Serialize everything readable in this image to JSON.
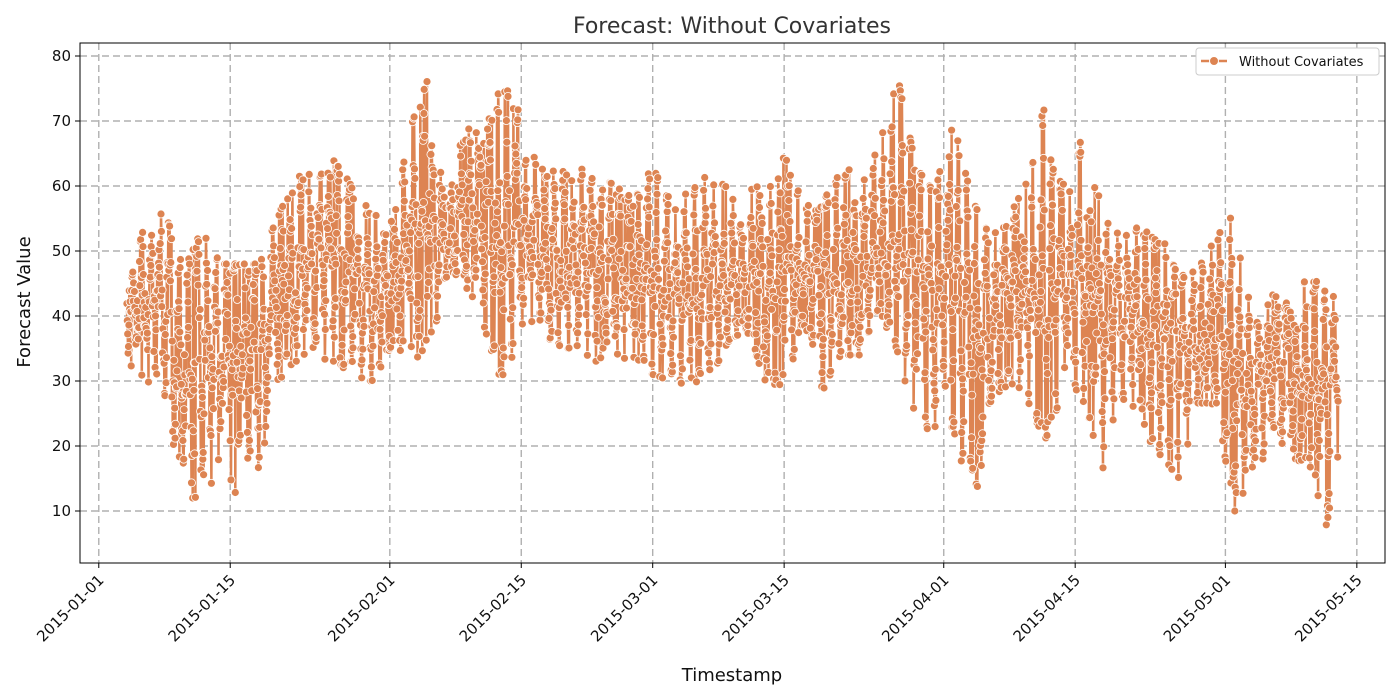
{
  "chart_data": {
    "type": "line",
    "title": "Forecast: Without Covariates",
    "xlabel": "Timestamp",
    "ylabel": "Forecast Value",
    "x_range": [
      "2014-12-30",
      "2015-05-18"
    ],
    "x_data_range": [
      "2015-01-04",
      "2015-05-13"
    ],
    "ylim": [
      2,
      82
    ],
    "y_ticks": [
      10,
      20,
      30,
      40,
      50,
      60,
      70,
      80
    ],
    "x_ticks": [
      "2015-01-01",
      "2015-01-15",
      "2015-02-01",
      "2015-02-15",
      "2015-03-01",
      "2015-03-15",
      "2015-04-01",
      "2015-04-15",
      "2015-05-01",
      "2015-05-15"
    ],
    "grid": true,
    "legend_position": "top-right",
    "series": [
      {
        "name": "Without Covariates",
        "color": "#dd8452",
        "marker": "circle",
        "daily_envelope": {
          "dates": [
            "2015-01-04",
            "2015-01-06",
            "2015-01-08",
            "2015-01-10",
            "2015-01-12",
            "2015-01-14",
            "2015-01-16",
            "2015-01-18",
            "2015-01-20",
            "2015-01-22",
            "2015-01-24",
            "2015-01-26",
            "2015-01-28",
            "2015-01-30",
            "2015-02-01",
            "2015-02-03",
            "2015-02-05",
            "2015-02-07",
            "2015-02-09",
            "2015-02-11",
            "2015-02-13",
            "2015-02-15",
            "2015-02-17",
            "2015-02-19",
            "2015-02-21",
            "2015-02-23",
            "2015-02-25",
            "2015-02-27",
            "2015-03-01",
            "2015-03-03",
            "2015-03-05",
            "2015-03-07",
            "2015-03-09",
            "2015-03-11",
            "2015-03-13",
            "2015-03-15",
            "2015-03-17",
            "2015-03-19",
            "2015-03-21",
            "2015-03-23",
            "2015-03-25",
            "2015-03-27",
            "2015-03-29",
            "2015-03-31",
            "2015-04-02",
            "2015-04-04",
            "2015-04-06",
            "2015-04-08",
            "2015-04-10",
            "2015-04-12",
            "2015-04-14",
            "2015-04-16",
            "2015-04-18",
            "2015-04-20",
            "2015-04-22",
            "2015-04-24",
            "2015-04-26",
            "2015-04-28",
            "2015-04-30",
            "2015-05-02",
            "2015-05-04",
            "2015-05-06",
            "2015-05-08",
            "2015-05-10",
            "2015-05-12",
            "2015-05-13"
          ],
          "min": [
            31,
            30,
            26,
            14,
            9,
            18,
            11,
            16,
            29,
            33,
            35,
            31,
            33,
            28,
            35,
            34,
            33,
            46,
            45,
            37,
            29,
            37,
            38,
            35,
            35,
            33,
            34,
            33,
            31,
            30,
            29,
            30,
            36,
            38,
            30,
            29,
            38,
            28,
            34,
            34,
            41,
            35,
            23,
            22,
            23,
            9,
            25,
            30,
            25,
            21,
            30,
            25,
            16,
            27,
            23,
            18,
            14,
            25,
            26,
            10,
            13,
            23,
            18,
            17,
            6,
            16
          ],
          "max": [
            43,
            55,
            56,
            48,
            53,
            48,
            48,
            48,
            55,
            62,
            62,
            64,
            60,
            56,
            54,
            68,
            77,
            58,
            69,
            68,
            76,
            71,
            63,
            62,
            63,
            62,
            60,
            58,
            63,
            58,
            59,
            62,
            61,
            61,
            60,
            66,
            57,
            57,
            63,
            64,
            66,
            78,
            63,
            59,
            70,
            58,
            52,
            56,
            62,
            74,
            59,
            69,
            55,
            52,
            54,
            53,
            46,
            47,
            52,
            56,
            38,
            45,
            41,
            47,
            43,
            43
          ],
          "median": [
            40,
            44,
            42,
            32,
            33,
            36,
            34,
            34,
            44,
            46,
            48,
            49,
            46,
            42,
            44,
            51,
            54,
            52,
            56,
            57,
            52,
            51,
            51,
            48,
            49,
            48,
            47,
            47,
            46,
            44,
            44,
            46,
            45,
            46,
            44,
            47,
            47,
            45,
            45,
            46,
            50,
            52,
            48,
            43,
            42,
            38,
            38,
            44,
            45,
            43,
            45,
            45,
            40,
            40,
            40,
            36,
            34,
            37,
            40,
            32,
            27,
            33,
            31,
            31,
            28,
            30
          ]
        },
        "points_per_day": 24
      }
    ]
  }
}
